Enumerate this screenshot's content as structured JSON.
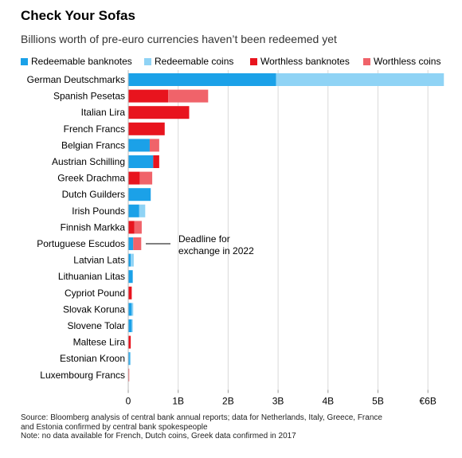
{
  "title": "Check Your Sofas",
  "subtitle": "Billions worth of pre-euro currencies haven’t been redeemed yet",
  "legend": [
    {
      "label": "Redeemable banknotes",
      "color": "#1ba1e8"
    },
    {
      "label": "Redeemable coins",
      "color": "#8fd3f5"
    },
    {
      "label": "Worthless banknotes",
      "color": "#e8141e"
    },
    {
      "label": "Worthless coins",
      "color": "#f0636a"
    }
  ],
  "annotation": {
    "line1": "Deadline for",
    "line2": "exchange in 2022",
    "currency": "Portuguese Escudos"
  },
  "notes": {
    "source_line1": "Source: Bloomberg analysis of central bank annual reports; data for Netherlands, Italy, Greece, France",
    "source_line2": "and Estonia confirmed by central bank spokespeople",
    "note": "Note: no data available for French, Dutch coins, Greek data confirmed in 2017"
  },
  "chart_data": {
    "type": "bar",
    "orientation": "horizontal",
    "stacked": true,
    "title": "Check Your Sofas",
    "subtitle": "Billions worth of pre-euro currencies haven’t been redeemed yet",
    "xlim": [
      0,
      6.3
    ],
    "ticks": [
      0,
      1,
      2,
      3,
      4,
      5,
      6
    ],
    "tick_labels": [
      "0",
      "1B",
      "2B",
      "3B",
      "4B",
      "5B",
      "€6B"
    ],
    "grid": "vertical gridlines",
    "legend_placement": "top",
    "categories": [
      "German Deutschmarks",
      "Spanish Pesetas",
      "Italian Lira",
      "French Francs",
      "Belgian Francs",
      "Austrian Schilling",
      "Greek Drachma",
      "Dutch Guilders",
      "Irish Pounds",
      "Finnish Markka",
      "Portuguese Escudos",
      "Latvian Lats",
      "Lithuanian Litas",
      "Cypriot Pound",
      "Slovak Koruna",
      "Slovene Tolar",
      "Maltese Lira",
      "Estonian Kroon",
      "Luxembourg Francs"
    ],
    "series": [
      {
        "name": "Redeemable banknotes",
        "color": "#1ba1e8",
        "values": [
          2.96,
          0,
          0,
          0,
          0.43,
          0.5,
          0,
          0.45,
          0.22,
          0,
          0.1,
          0.05,
          0.09,
          0,
          0.07,
          0.07,
          0,
          0.03,
          0
        ]
      },
      {
        "name": "Redeemable coins",
        "color": "#8fd3f5",
        "values": [
          3.36,
          0,
          0,
          0,
          0,
          0,
          0,
          0,
          0.12,
          0,
          0,
          0.06,
          0,
          0,
          0.03,
          0.02,
          0,
          0.02,
          0
        ]
      },
      {
        "name": "Worthless banknotes",
        "color": "#e8141e",
        "values": [
          0,
          0.8,
          1.22,
          0.73,
          0,
          0.12,
          0.23,
          0,
          0,
          0.12,
          0,
          0,
          0,
          0.07,
          0,
          0,
          0.05,
          0,
          0
        ]
      },
      {
        "name": "Worthless coins",
        "color": "#f0636a",
        "values": [
          0,
          0.8,
          0,
          0,
          0.19,
          0,
          0.25,
          0,
          0,
          0.15,
          0.16,
          0,
          0,
          0,
          0,
          0,
          0,
          0,
          0.02
        ]
      }
    ]
  }
}
